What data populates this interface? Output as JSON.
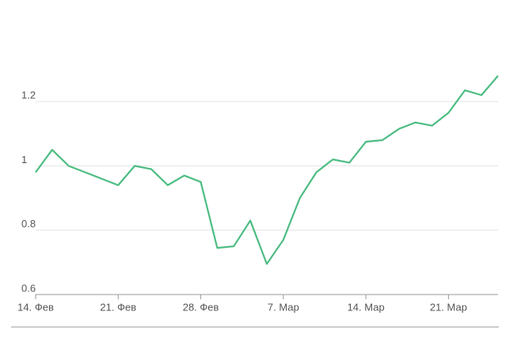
{
  "chart_data": {
    "type": "line",
    "categories": [
      "14. Фев",
      null,
      null,
      null,
      null,
      "21. Фев",
      null,
      null,
      null,
      null,
      "28. Фев",
      null,
      null,
      null,
      null,
      "7. Мар",
      null,
      null,
      null,
      null,
      "14. Мар",
      null,
      null,
      null,
      null,
      "21. Мар",
      null,
      null,
      null
    ],
    "series": [
      {
        "color": "#4dbd83",
        "values": [
          0.98,
          1.05,
          1.0,
          0.98,
          0.96,
          0.94,
          1.0,
          0.99,
          0.94,
          0.97,
          0.95,
          0.745,
          0.75,
          0.83,
          0.695,
          0.77,
          0.9,
          0.98,
          1.02,
          1.01,
          1.075,
          1.08,
          1.115,
          1.135,
          1.125,
          1.165,
          1.235,
          1.22,
          1.28
        ]
      }
    ],
    "ylim": [
      0.6,
      1.4
    ],
    "yticks": [
      0.6,
      0.8,
      1,
      1.2
    ],
    "grid": true
  }
}
